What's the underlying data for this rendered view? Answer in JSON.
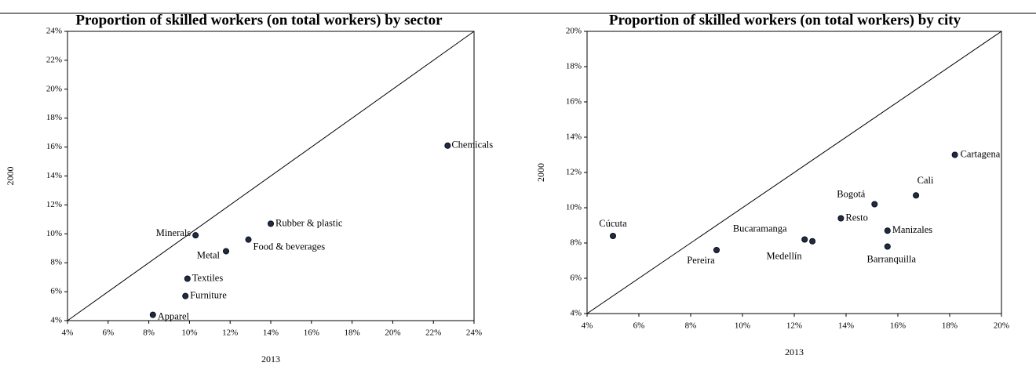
{
  "chart_data": [
    {
      "type": "scatter",
      "title": "Proportion of skilled workers (on total workers) by sector",
      "xlabel": "2013",
      "ylabel": "2000",
      "categories": [
        "Chemicals",
        "Rubber & plastic",
        "Food & beverages",
        "Minerals",
        "Metal",
        "Textiles",
        "Furniture",
        "Apparel"
      ],
      "x": [
        22.7,
        14.0,
        12.9,
        10.3,
        11.8,
        9.9,
        9.8,
        8.2
      ],
      "values": [
        16.1,
        10.7,
        9.6,
        9.9,
        8.8,
        6.9,
        5.7,
        4.4
      ],
      "color": "#1f2a44",
      "xlim": [
        4,
        24
      ],
      "ylim": [
        4,
        24
      ],
      "xticks": [
        {
          "value": 4,
          "label": "4%"
        },
        {
          "value": 6,
          "label": "6%"
        },
        {
          "value": 8,
          "label": "8%"
        },
        {
          "value": 10,
          "label": "10%"
        },
        {
          "value": 12,
          "label": "12%"
        },
        {
          "value": 14,
          "label": "14%"
        },
        {
          "value": 16,
          "label": "16%"
        },
        {
          "value": 18,
          "label": "18%"
        },
        {
          "value": 20,
          "label": "20%"
        },
        {
          "value": 22,
          "label": "22%"
        },
        {
          "value": 24,
          "label": "24%"
        }
      ],
      "yticks": [
        {
          "value": 4,
          "label": "4%"
        },
        {
          "value": 6,
          "label": "6%"
        },
        {
          "value": 8,
          "label": "8%"
        },
        {
          "value": 10,
          "label": "10%"
        },
        {
          "value": 12,
          "label": "12%"
        },
        {
          "value": 14,
          "label": "14%"
        },
        {
          "value": 16,
          "label": "16%"
        },
        {
          "value": 18,
          "label": "18%"
        },
        {
          "value": 20,
          "label": "20%"
        },
        {
          "value": 22,
          "label": "22%"
        },
        {
          "value": 24,
          "label": "24%"
        }
      ]
    },
    {
      "type": "scatter",
      "title": "Proportion of skilled workers (on total workers) by city",
      "xlabel": "2013",
      "ylabel": "2000",
      "categories": [
        "Cúcuta",
        "Pereira",
        "Bucaramanga",
        "Medellín",
        "Resto",
        "Bogotá",
        "Manizales",
        "Barranquilla",
        "Cali",
        "Cartagena"
      ],
      "x": [
        5.0,
        9.0,
        12.4,
        12.7,
        13.8,
        15.1,
        15.6,
        15.6,
        16.7,
        18.2
      ],
      "values": [
        8.4,
        7.6,
        8.2,
        8.1,
        9.4,
        10.2,
        8.7,
        7.8,
        10.7,
        13.0
      ],
      "color": "#1f2a44",
      "xlim": [
        4,
        20
      ],
      "ylim": [
        4,
        20
      ],
      "xticks": [
        {
          "value": 4,
          "label": "4%"
        },
        {
          "value": 6,
          "label": "6%"
        },
        {
          "value": 8,
          "label": "8%"
        },
        {
          "value": 10,
          "label": "10%"
        },
        {
          "value": 12,
          "label": "12%"
        },
        {
          "value": 14,
          "label": "14%"
        },
        {
          "value": 16,
          "label": "16%"
        },
        {
          "value": 18,
          "label": "18%"
        },
        {
          "value": 20,
          "label": "20%"
        }
      ],
      "yticks": [
        {
          "value": 4,
          "label": "4%"
        },
        {
          "value": 6,
          "label": "6%"
        },
        {
          "value": 8,
          "label": "8%"
        },
        {
          "value": 10,
          "label": "10%"
        },
        {
          "value": 12,
          "label": "12%"
        },
        {
          "value": 14,
          "label": "14%"
        },
        {
          "value": 16,
          "label": "16%"
        },
        {
          "value": 18,
          "label": "18%"
        },
        {
          "value": 20,
          "label": "20%"
        }
      ]
    }
  ]
}
